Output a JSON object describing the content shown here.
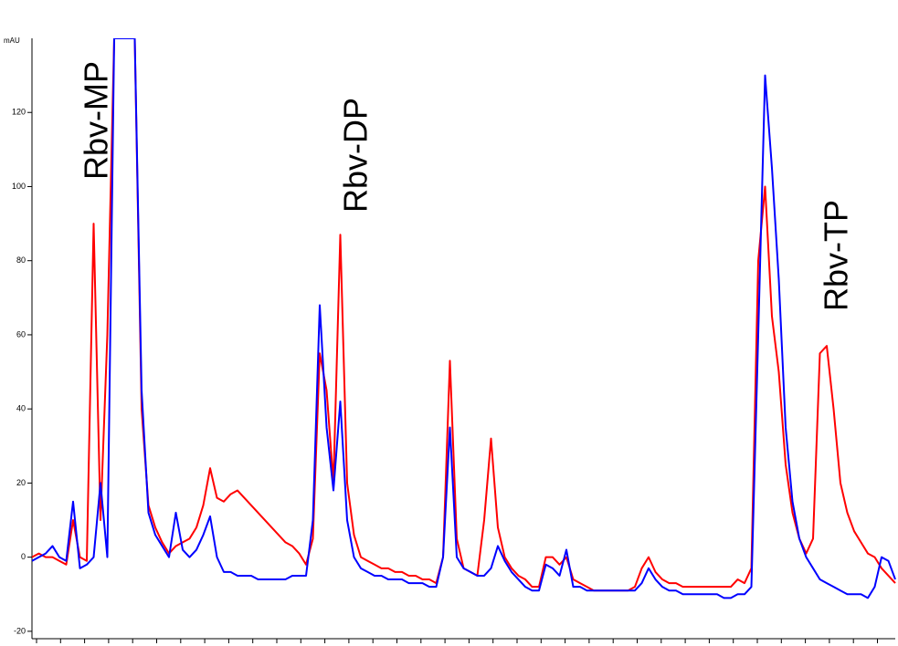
{
  "chart_data": {
    "type": "line",
    "y_label": "mAU",
    "annotations": [
      "Rbv-MP",
      "Rbv-DP",
      "Rbv-TP"
    ],
    "categories": [
      null,
      null,
      null,
      null,
      null,
      null,
      null,
      null,
      null,
      null,
      null,
      null,
      null,
      null,
      null,
      null,
      null,
      null,
      null,
      null,
      null,
      null,
      null,
      null,
      null,
      null,
      null,
      null,
      null,
      null,
      null,
      null,
      null,
      null,
      null,
      null,
      null,
      null,
      null,
      null,
      null,
      null,
      null,
      null,
      null,
      null,
      null,
      null,
      null,
      null,
      null,
      null,
      null,
      null,
      null,
      null,
      null,
      null,
      null,
      null,
      null,
      null,
      null,
      null,
      null,
      null,
      null,
      null,
      null,
      null,
      null,
      null,
      null,
      null,
      null,
      null,
      null,
      null,
      null,
      null,
      null,
      null,
      null,
      null,
      null,
      null,
      null,
      null,
      null,
      null,
      null,
      null,
      null,
      null,
      null,
      null,
      null,
      null,
      null,
      null,
      null,
      null,
      null,
      null,
      null,
      null,
      null,
      null,
      null,
      null,
      null,
      null,
      null,
      null,
      null,
      null,
      null,
      null,
      null,
      null,
      null,
      null,
      null,
      null,
      null,
      null,
      null
    ],
    "series": [
      {
        "color": "#ff0000",
        "values": [
          0,
          1,
          0,
          0,
          -1,
          -2,
          10,
          0,
          -1,
          90,
          10,
          60,
          140,
          140,
          140,
          140,
          40,
          14,
          8,
          4,
          1,
          3,
          4,
          5,
          8,
          14,
          24,
          16,
          15,
          17,
          18,
          16,
          14,
          12,
          10,
          8,
          6,
          4,
          3,
          1,
          -2,
          5,
          55,
          45,
          20,
          87,
          20,
          6,
          0,
          -1,
          -2,
          -3,
          -3,
          -4,
          -4,
          -5,
          -5,
          -6,
          -6,
          -7,
          0,
          53,
          5,
          -3,
          -4,
          -5,
          10,
          32,
          8,
          0,
          -3,
          -5,
          -6,
          -8,
          -8,
          0,
          0,
          -2,
          0,
          -6,
          -7,
          -8,
          -9,
          -9,
          -9,
          -9,
          -9,
          -9,
          -8,
          -3,
          0,
          -4,
          -6,
          -7,
          -7,
          -8,
          -8,
          -8,
          -8,
          -8,
          -8,
          -8,
          -8,
          -6,
          -7,
          -3,
          80,
          100,
          65,
          50,
          25,
          12,
          5,
          1,
          5,
          55,
          57,
          40,
          20,
          12,
          7,
          4,
          1,
          0,
          -3,
          -5,
          -7
        ]
      },
      {
        "color": "#0000ff",
        "values": [
          -1,
          0,
          1,
          3,
          0,
          -1,
          15,
          -3,
          -2,
          0,
          20,
          0,
          140,
          140,
          140,
          140,
          45,
          12,
          6,
          3,
          0,
          12,
          2,
          0,
          2,
          6,
          11,
          0,
          -4,
          -4,
          -5,
          -5,
          -5,
          -6,
          -6,
          -6,
          -6,
          -6,
          -5,
          -5,
          -5,
          10,
          68,
          35,
          18,
          42,
          10,
          0,
          -3,
          -4,
          -5,
          -5,
          -6,
          -6,
          -6,
          -7,
          -7,
          -7,
          -8,
          -8,
          0,
          35,
          0,
          -3,
          -4,
          -5,
          -5,
          -3,
          3,
          -1,
          -4,
          -6,
          -8,
          -9,
          -9,
          -2,
          -3,
          -5,
          2,
          -8,
          -8,
          -9,
          -9,
          -9,
          -9,
          -9,
          -9,
          -9,
          -9,
          -7,
          -3,
          -6,
          -8,
          -9,
          -9,
          -10,
          -10,
          -10,
          -10,
          -10,
          -10,
          -11,
          -11,
          -10,
          -10,
          -8,
          60,
          130,
          105,
          75,
          35,
          15,
          5,
          0,
          -3,
          -6,
          -7,
          -8,
          -9,
          -10,
          -10,
          -10,
          -11,
          -8,
          0,
          -1,
          -6
        ]
      }
    ],
    "ylim": [
      -22,
      140
    ],
    "yticks": [
      -20,
      0,
      20,
      40,
      60,
      80,
      100,
      120
    ]
  }
}
